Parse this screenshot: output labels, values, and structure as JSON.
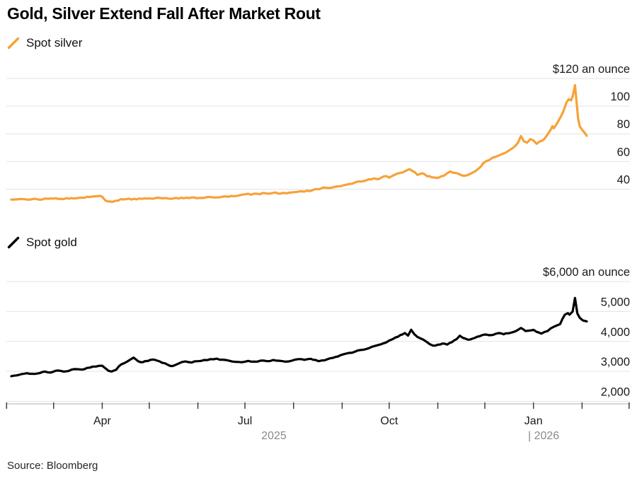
{
  "title": "Gold, Silver Extend Fall After Market Rout",
  "source": "Source: Bloomberg",
  "colors": {
    "silver_line": "#F7A137",
    "gold_line": "#000000",
    "gridline": "#E3E3E3",
    "axis_line": "#ADADAD",
    "axis_tick": "#3F3F3F",
    "year_text": "#8A8A8A"
  },
  "chart_data": {
    "type": "line",
    "x_axis": {
      "note": "Monthly ticks, Feb 2025 through Feb 2026; point x = days from first tick",
      "tick_days": [
        0,
        30,
        61,
        91,
        122,
        152,
        183,
        214,
        244,
        275,
        305,
        336,
        367,
        397
      ],
      "month_labels": [
        {
          "day": 61,
          "label": "Apr"
        },
        {
          "day": 152,
          "label": "Jul"
        },
        {
          "day": 244,
          "label": "Oct"
        },
        {
          "day": 336,
          "label": "Jan"
        }
      ],
      "year_labels": [
        {
          "x": 387,
          "label": "2025",
          "anchor": "middle"
        },
        {
          "x": 746,
          "label": "| 2026",
          "anchor": "start"
        }
      ]
    },
    "charts": [
      {
        "name": "spot-silver",
        "legend": "Spot silver",
        "color": "#F7A137",
        "y_ticks": [
          {
            "value": 120,
            "label": "$120 an ounce"
          },
          {
            "value": 100,
            "label": "100"
          },
          {
            "value": 80,
            "label": "80"
          },
          {
            "value": 60,
            "label": "60"
          },
          {
            "value": 40,
            "label": "40"
          }
        ],
        "points": [
          [
            3,
            32.4
          ],
          [
            8,
            32.8
          ],
          [
            13,
            32.5
          ],
          [
            18,
            33.0
          ],
          [
            23,
            32.6
          ],
          [
            28,
            33.2
          ],
          [
            33,
            32.9
          ],
          [
            38,
            33.5
          ],
          [
            43,
            33.2
          ],
          [
            48,
            33.8
          ],
          [
            53,
            34.3
          ],
          [
            58,
            34.9
          ],
          [
            61,
            34.5
          ],
          [
            63,
            31.8
          ],
          [
            66,
            31.1
          ],
          [
            69,
            31.5
          ],
          [
            73,
            32.8
          ],
          [
            78,
            33.1
          ],
          [
            83,
            32.6
          ],
          [
            88,
            33.3
          ],
          [
            93,
            33.0
          ],
          [
            98,
            33.6
          ],
          [
            103,
            33.2
          ],
          [
            108,
            33.7
          ],
          [
            113,
            33.4
          ],
          [
            118,
            34.0
          ],
          [
            123,
            33.7
          ],
          [
            128,
            34.3
          ],
          [
            133,
            34.0
          ],
          [
            138,
            34.6
          ],
          [
            143,
            35.0
          ],
          [
            148,
            35.4
          ],
          [
            152,
            36.3
          ],
          [
            156,
            36.0
          ],
          [
            160,
            36.6
          ],
          [
            165,
            37.0
          ],
          [
            170,
            37.3
          ],
          [
            175,
            36.9
          ],
          [
            180,
            37.4
          ],
          [
            185,
            37.9
          ],
          [
            190,
            38.3
          ],
          [
            195,
            39.2
          ],
          [
            199,
            39.9
          ],
          [
            202,
            41.2
          ],
          [
            205,
            40.8
          ],
          [
            209,
            41.6
          ],
          [
            213,
            42.1
          ],
          [
            217,
            43.3
          ],
          [
            222,
            44.7
          ],
          [
            226,
            45.5
          ],
          [
            231,
            47.2
          ],
          [
            234,
            47.7
          ],
          [
            237,
            47.1
          ],
          [
            241,
            49.4
          ],
          [
            244,
            48.3
          ],
          [
            247,
            50.1
          ],
          [
            251,
            51.8
          ],
          [
            254,
            52.9
          ],
          [
            257,
            54.5
          ],
          [
            259,
            53.0
          ],
          [
            262,
            50.3
          ],
          [
            265,
            51.5
          ],
          [
            268,
            49.4
          ],
          [
            271,
            48.6
          ],
          [
            275,
            48.1
          ],
          [
            279,
            49.8
          ],
          [
            283,
            52.8
          ],
          [
            286,
            51.8
          ],
          [
            289,
            50.6
          ],
          [
            293,
            49.8
          ],
          [
            297,
            51.8
          ],
          [
            301,
            54.9
          ],
          [
            304,
            58.8
          ],
          [
            308,
            61.2
          ],
          [
            312,
            63.4
          ],
          [
            316,
            65.4
          ],
          [
            320,
            67.7
          ],
          [
            323,
            69.9
          ],
          [
            326,
            73.3
          ],
          [
            328,
            78.4
          ],
          [
            330,
            74.5
          ],
          [
            332,
            73.6
          ],
          [
            334,
            76.2
          ],
          [
            336,
            75.2
          ],
          [
            338,
            72.8
          ],
          [
            340,
            74.5
          ],
          [
            343,
            76.4
          ],
          [
            345,
            79.5
          ],
          [
            347,
            83.0
          ],
          [
            348,
            85.5
          ],
          [
            349,
            84.0
          ],
          [
            351,
            87.5
          ],
          [
            353,
            91.5
          ],
          [
            355,
            96.0
          ],
          [
            357,
            102.5
          ],
          [
            358.5,
            105.0
          ],
          [
            360,
            104.2
          ],
          [
            361,
            107.0
          ],
          [
            362.5,
            115.2
          ],
          [
            363.5,
            103.0
          ],
          [
            364.5,
            91.0
          ],
          [
            365.5,
            85.5
          ],
          [
            367,
            83.0
          ],
          [
            368.5,
            81.0
          ],
          [
            370,
            78.6
          ]
        ]
      },
      {
        "name": "spot-gold",
        "legend": "Spot gold",
        "color": "#000000",
        "y_ticks": [
          {
            "value": 6000,
            "label": "$6,000 an ounce"
          },
          {
            "value": 5000,
            "label": "5,000"
          },
          {
            "value": 4000,
            "label": "4,000"
          },
          {
            "value": 3000,
            "label": "3,000"
          },
          {
            "value": 2000,
            "label": "2,000"
          }
        ],
        "points": [
          [
            3,
            2840
          ],
          [
            8,
            2885
          ],
          [
            13,
            2940
          ],
          [
            18,
            2915
          ],
          [
            23,
            2985
          ],
          [
            28,
            2960
          ],
          [
            33,
            3030
          ],
          [
            38,
            3000
          ],
          [
            43,
            3075
          ],
          [
            48,
            3060
          ],
          [
            53,
            3125
          ],
          [
            57,
            3160
          ],
          [
            61,
            3190
          ],
          [
            63,
            3105
          ],
          [
            65,
            3020
          ],
          [
            67,
            2995
          ],
          [
            70,
            3060
          ],
          [
            73,
            3230
          ],
          [
            77,
            3330
          ],
          [
            81,
            3460
          ],
          [
            84,
            3335
          ],
          [
            87,
            3310
          ],
          [
            90,
            3345
          ],
          [
            93,
            3395
          ],
          [
            96,
            3360
          ],
          [
            99,
            3290
          ],
          [
            103,
            3215
          ],
          [
            106,
            3180
          ],
          [
            110,
            3270
          ],
          [
            114,
            3330
          ],
          [
            118,
            3295
          ],
          [
            122,
            3340
          ],
          [
            126,
            3380
          ],
          [
            130,
            3410
          ],
          [
            134,
            3425
          ],
          [
            138,
            3390
          ],
          [
            142,
            3355
          ],
          [
            146,
            3320
          ],
          [
            150,
            3305
          ],
          [
            154,
            3350
          ],
          [
            158,
            3325
          ],
          [
            162,
            3360
          ],
          [
            166,
            3340
          ],
          [
            170,
            3380
          ],
          [
            174,
            3355
          ],
          [
            178,
            3325
          ],
          [
            182,
            3360
          ],
          [
            186,
            3410
          ],
          [
            190,
            3385
          ],
          [
            194,
            3420
          ],
          [
            197,
            3380
          ],
          [
            199,
            3340
          ],
          [
            203,
            3370
          ],
          [
            208,
            3450
          ],
          [
            213,
            3540
          ],
          [
            217,
            3600
          ],
          [
            222,
            3655
          ],
          [
            226,
            3715
          ],
          [
            231,
            3775
          ],
          [
            235,
            3850
          ],
          [
            240,
            3930
          ],
          [
            244,
            4030
          ],
          [
            248,
            4130
          ],
          [
            251,
            4210
          ],
          [
            254,
            4280
          ],
          [
            256,
            4195
          ],
          [
            258,
            4390
          ],
          [
            260,
            4245
          ],
          [
            262,
            4150
          ],
          [
            264,
            4100
          ],
          [
            266,
            4050
          ],
          [
            268,
            3980
          ],
          [
            270,
            3905
          ],
          [
            272,
            3860
          ],
          [
            275,
            3890
          ],
          [
            278,
            3930
          ],
          [
            281,
            3895
          ],
          [
            284,
            3975
          ],
          [
            287,
            4075
          ],
          [
            289,
            4190
          ],
          [
            291,
            4120
          ],
          [
            294,
            4060
          ],
          [
            297,
            4090
          ],
          [
            300,
            4155
          ],
          [
            303,
            4205
          ],
          [
            306,
            4230
          ],
          [
            309,
            4210
          ],
          [
            312,
            4255
          ],
          [
            315,
            4275
          ],
          [
            317,
            4240
          ],
          [
            320,
            4270
          ],
          [
            323,
            4310
          ],
          [
            326,
            4380
          ],
          [
            328,
            4450
          ],
          [
            331,
            4345
          ],
          [
            333,
            4360
          ],
          [
            336,
            4385
          ],
          [
            338,
            4320
          ],
          [
            341,
            4260
          ],
          [
            345,
            4345
          ],
          [
            349,
            4490
          ],
          [
            353,
            4580
          ],
          [
            356,
            4890
          ],
          [
            358,
            4945
          ],
          [
            359,
            4890
          ],
          [
            361,
            5000
          ],
          [
            362.5,
            5450
          ],
          [
            364,
            4935
          ],
          [
            365.5,
            4790
          ],
          [
            367.5,
            4700
          ],
          [
            370,
            4670
          ]
        ]
      }
    ]
  }
}
